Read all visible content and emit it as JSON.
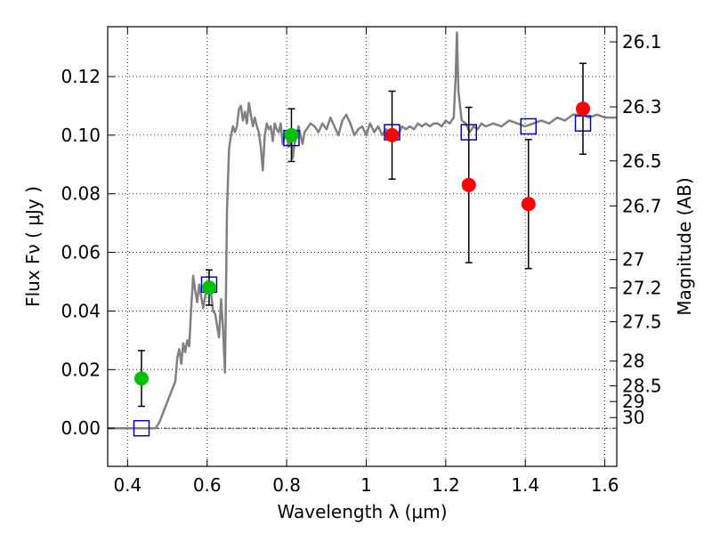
{
  "chart_data": {
    "type": "scatter",
    "title": "",
    "xlabel": "Wavelength  λ (μm)",
    "ylabel": "Flux  Fν  ( μJy )",
    "y2label": "Magnitude (AB)",
    "xlim": [
      0.35,
      1.63
    ],
    "ylim": [
      -0.013,
      0.137
    ],
    "grid": true,
    "x_ticks": [
      0.4,
      0.6,
      0.8,
      1.0,
      1.2,
      1.4,
      1.6
    ],
    "x_tick_labels": [
      "0.4",
      "0.6",
      "0.8",
      "1",
      "1.2",
      "1.4",
      "1.6"
    ],
    "y_ticks": [
      0.0,
      0.02,
      0.04,
      0.06,
      0.08,
      0.1,
      0.12
    ],
    "y_tick_labels": [
      "0.00",
      "0.02",
      "0.04",
      "0.06",
      "0.08",
      "0.10",
      "0.12"
    ],
    "y2_ticks": [
      {
        "label": "26.1",
        "mag": 26.1
      },
      {
        "label": "26.3",
        "mag": 26.3
      },
      {
        "label": "26.5",
        "mag": 26.5
      },
      {
        "label": "26.7",
        "mag": 26.7
      },
      {
        "label": "27",
        "mag": 27.0
      },
      {
        "label": "27.2",
        "mag": 27.2
      },
      {
        "label": "27.5",
        "mag": 27.5
      },
      {
        "label": "28",
        "mag": 28.0
      },
      {
        "label": "28.5",
        "mag": 28.5
      },
      {
        "label": "29",
        "mag": 29.0
      },
      {
        "label": "30",
        "mag": 30.0
      }
    ],
    "zero_line": 0.0,
    "series": [
      {
        "kind": "spectrum",
        "color": "#808080",
        "x": [
          0.35,
          0.47,
          0.48,
          0.5,
          0.52,
          0.525,
          0.53,
          0.535,
          0.54,
          0.545,
          0.55,
          0.555,
          0.56,
          0.565,
          0.57,
          0.575,
          0.58,
          0.59,
          0.6,
          0.605,
          0.61,
          0.615,
          0.62,
          0.63,
          0.635,
          0.64,
          0.645,
          0.65,
          0.655,
          0.66,
          0.665,
          0.67,
          0.675,
          0.68,
          0.685,
          0.69,
          0.695,
          0.7,
          0.705,
          0.71,
          0.715,
          0.72,
          0.725,
          0.73,
          0.735,
          0.74,
          0.745,
          0.75,
          0.755,
          0.76,
          0.765,
          0.77,
          0.775,
          0.78,
          0.785,
          0.79,
          0.795,
          0.8,
          0.805,
          0.81,
          0.815,
          0.82,
          0.825,
          0.83,
          0.835,
          0.84,
          0.845,
          0.85,
          0.86,
          0.87,
          0.88,
          0.89,
          0.9,
          0.91,
          0.92,
          0.93,
          0.94,
          0.95,
          0.96,
          0.97,
          0.98,
          0.99,
          1.0,
          1.01,
          1.02,
          1.03,
          1.04,
          1.05,
          1.06,
          1.07,
          1.08,
          1.09,
          1.1,
          1.11,
          1.12,
          1.13,
          1.14,
          1.15,
          1.16,
          1.17,
          1.18,
          1.19,
          1.2,
          1.21,
          1.22,
          1.225,
          1.228,
          1.232,
          1.24,
          1.25,
          1.26,
          1.27,
          1.28,
          1.29,
          1.3,
          1.32,
          1.34,
          1.36,
          1.38,
          1.4,
          1.42,
          1.44,
          1.46,
          1.48,
          1.5,
          1.52,
          1.54,
          1.56,
          1.58,
          1.6,
          1.63
        ],
        "y": [
          0.0,
          0.0,
          0.002,
          0.009,
          0.016,
          0.024,
          0.027,
          0.022,
          0.029,
          0.026,
          0.03,
          0.028,
          0.041,
          0.052,
          0.047,
          0.043,
          0.049,
          0.041,
          0.049,
          0.047,
          0.046,
          0.04,
          0.039,
          0.031,
          0.044,
          0.034,
          0.019,
          0.075,
          0.095,
          0.1,
          0.103,
          0.101,
          0.103,
          0.109,
          0.11,
          0.105,
          0.108,
          0.104,
          0.111,
          0.107,
          0.103,
          0.106,
          0.103,
          0.101,
          0.096,
          0.088,
          0.1,
          0.104,
          0.102,
          0.103,
          0.098,
          0.104,
          0.102,
          0.101,
          0.104,
          0.097,
          0.1,
          0.1,
          0.096,
          0.1,
          0.092,
          0.097,
          0.1,
          0.103,
          0.1,
          0.097,
          0.101,
          0.102,
          0.104,
          0.103,
          0.101,
          0.104,
          0.102,
          0.106,
          0.103,
          0.1,
          0.105,
          0.107,
          0.104,
          0.1,
          0.102,
          0.103,
          0.1,
          0.104,
          0.101,
          0.103,
          0.1,
          0.102,
          0.1,
          0.101,
          0.1,
          0.103,
          0.102,
          0.103,
          0.102,
          0.104,
          0.103,
          0.104,
          0.103,
          0.104,
          0.104,
          0.103,
          0.105,
          0.104,
          0.106,
          0.12,
          0.135,
          0.115,
          0.105,
          0.104,
          0.101,
          0.103,
          0.102,
          0.104,
          0.103,
          0.104,
          0.103,
          0.105,
          0.104,
          0.103,
          0.104,
          0.105,
          0.104,
          0.106,
          0.105,
          0.107,
          0.107,
          0.106,
          0.107,
          0.106,
          0.106
        ]
      },
      {
        "kind": "points",
        "color": "#00c000",
        "x": [
          0.435,
          0.605,
          0.812
        ],
        "y": [
          0.017,
          0.048,
          0.1
        ],
        "err": [
          0.0095,
          0.006,
          0.009
        ]
      },
      {
        "kind": "points",
        "color": "#ff0000",
        "x": [
          1.065,
          1.258,
          1.408,
          1.545
        ],
        "y": [
          0.1,
          0.083,
          0.0765,
          0.109
        ],
        "err": [
          0.015,
          0.0265,
          0.022,
          0.0155
        ]
      },
      {
        "kind": "squares",
        "color": "#0000cc",
        "x": [
          0.435,
          0.605,
          0.812,
          1.065,
          1.258,
          1.408,
          1.545
        ],
        "y": [
          0.0,
          0.049,
          0.099,
          0.101,
          0.101,
          0.103,
          0.104
        ]
      }
    ]
  }
}
